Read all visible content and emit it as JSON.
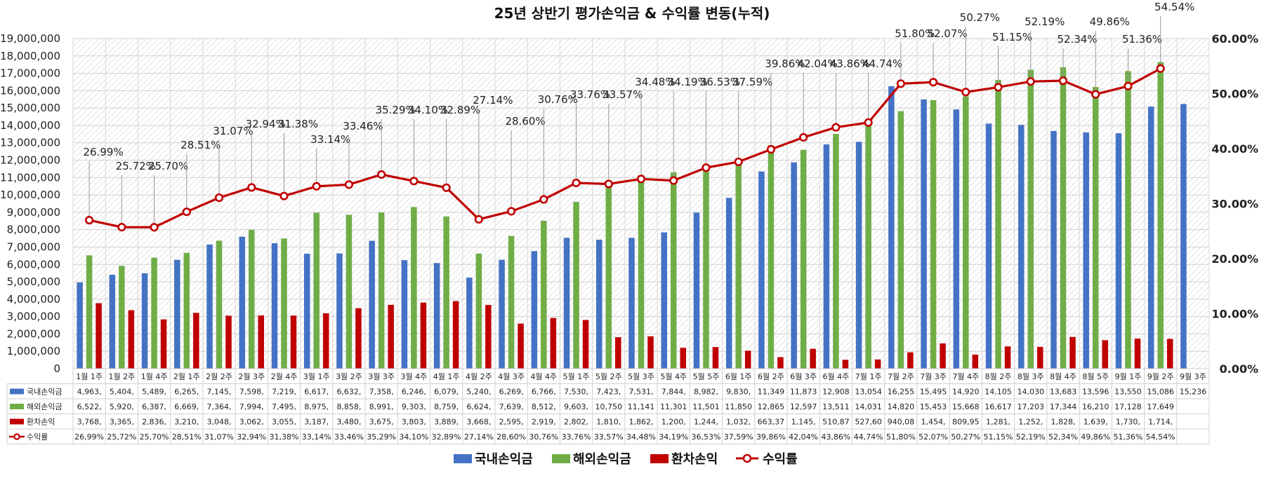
{
  "chart_data": {
    "type": "bar",
    "title": "25년 상반기 평가손익금 & 수익률 변동(누적)",
    "categories": [
      "1월 1주",
      "1월 2주",
      "1월 4주",
      "2월 1주",
      "2월 2주",
      "2월 3주",
      "2월 4주",
      "3월 1주",
      "3월 2주",
      "3월 3주",
      "3월 4주",
      "4월 1주",
      "4월 2주",
      "4월 3주",
      "4월 4주",
      "5월 1주",
      "5월 2주",
      "5월 3주",
      "5월 4주",
      "5월 5주",
      "6월 1주",
      "6월 2주",
      "6월 3주",
      "6월 4주",
      "7월 1주",
      "7월 2주",
      "7월 3주",
      "7월 4주",
      "8월 2주",
      "8월 3주",
      "8월 4주",
      "8월 5주",
      "9월 1주",
      "9월 2주",
      "9월 3주"
    ],
    "y_left_ticks": [
      "0",
      "1,000,000",
      "2,000,000",
      "3,000,000",
      "4,000,000",
      "5,000,000",
      "6,000,000",
      "7,000,000",
      "8,000,000",
      "9,000,000",
      "10,000,000",
      "11,000,000",
      "12,000,000",
      "13,000,000",
      "14,000,000",
      "15,000,000",
      "16,000,000",
      "17,000,000",
      "18,000,000",
      "19,000,000"
    ],
    "y_right_ticks": [
      "0.00%",
      "10.00%",
      "20.00%",
      "30.00%",
      "40.00%",
      "50.00%",
      "60.00%"
    ],
    "ylim_left": [
      0,
      19000000
    ],
    "ylim_right": [
      0,
      60
    ],
    "grid": true,
    "legend_position": "bottom",
    "series": [
      {
        "name": "국내손익금",
        "type": "bar",
        "axis": "left",
        "color": "#4472C4",
        "values": [
          4963000,
          5404000,
          5489000,
          6265000,
          7145000,
          7598000,
          7219000,
          6617000,
          6632000,
          7358000,
          6246000,
          6079000,
          5240000,
          6269000,
          6766000,
          7530000,
          7423000,
          7531000,
          7844000,
          8982000,
          9830000,
          11349000,
          11873000,
          12908000,
          13054000,
          16255000,
          15495000,
          14920000,
          14105000,
          14030000,
          13683000,
          13596000,
          13550000,
          15086000,
          15236000
        ],
        "table_cells": [
          "4,963,",
          "5,404,",
          "5,489,",
          "6,265,",
          "7,145,",
          "7,598,",
          "7,219,",
          "6,617,",
          "6,632,",
          "7,358,",
          "6,246,",
          "6,079,",
          "5,240,",
          "6,269,",
          "6,766,",
          "7,530,",
          "7,423,",
          "7,531,",
          "7,844,",
          "8,982,",
          "9,830,",
          "11,349",
          "11,873",
          "12,908",
          "13,054",
          "16,255",
          "15,495",
          "14,920",
          "14,105",
          "14,030",
          "13,683",
          "13,596",
          "13,550",
          "15,086",
          "15,236"
        ]
      },
      {
        "name": "해외손익금",
        "type": "bar",
        "axis": "left",
        "color": "#70AD47",
        "values": [
          6522000,
          5920000,
          6387000,
          6669000,
          7364000,
          7994000,
          7495000,
          8975000,
          8858000,
          8991000,
          9303000,
          8759000,
          6624000,
          7639000,
          8512000,
          9603000,
          10750000,
          11141000,
          11301000,
          11501000,
          11850000,
          12865000,
          12597000,
          13511000,
          14031000,
          14820000,
          15453000,
          15668000,
          16617000,
          17203000,
          17344000,
          16210000,
          17128000,
          17649000,
          null
        ],
        "table_cells": [
          "6,522,",
          "5,920,",
          "6,387,",
          "6,669,",
          "7,364,",
          "7,994,",
          "7,495,",
          "8,975,",
          "8,858,",
          "8,991,",
          "9,303,",
          "8,759,",
          "6,624,",
          "7,639,",
          "8,512,",
          "9,603,",
          "10,750",
          "11,141",
          "11,301",
          "11,501",
          "11,850",
          "12,865",
          "12,597",
          "13,511",
          "14,031",
          "14,820",
          "15,453",
          "15,668",
          "16,617",
          "17,203",
          "17,344",
          "16,210",
          "17,128",
          "17,649",
          ""
        ]
      },
      {
        "name": "환차손익",
        "type": "bar",
        "axis": "left",
        "color": "#C00000",
        "values": [
          3768000,
          3365000,
          2836000,
          3210000,
          3048000,
          3062000,
          3055000,
          3187000,
          3480000,
          3675000,
          3803000,
          3889000,
          3668000,
          2595000,
          2919000,
          2802000,
          1810000,
          1862000,
          1200000,
          1244000,
          1032000,
          663370,
          1145000,
          510870,
          527600,
          940080,
          1454000,
          809950,
          1281000,
          1252000,
          1828000,
          1639000,
          1730000,
          1714000,
          null
        ],
        "table_cells": [
          "3,768,",
          "3,365,",
          "2,836,",
          "3,210,",
          "3,048,",
          "3,062,",
          "3,055,",
          "3,187,",
          "3,480,",
          "3,675,",
          "3,803,",
          "3,889,",
          "3,668,",
          "2,595,",
          "2,919,",
          "2,802,",
          "1,810,",
          "1,862,",
          "1,200,",
          "1,244,",
          "1,032,",
          "663,37",
          "1,145,",
          "510,87",
          "527,60",
          "940,08",
          "1,454,",
          "809,95",
          "1,281,",
          "1,252,",
          "1,828,",
          "1,639,",
          "1,730,",
          "1,714,",
          ""
        ]
      },
      {
        "name": "수익률",
        "type": "line",
        "axis": "right",
        "color": "#C00000",
        "values": [
          26.99,
          25.72,
          25.7,
          28.51,
          31.07,
          32.94,
          31.38,
          33.14,
          33.46,
          35.29,
          34.1,
          32.89,
          27.14,
          28.6,
          30.76,
          33.76,
          33.57,
          34.48,
          34.19,
          36.53,
          37.59,
          39.86,
          42.04,
          43.86,
          44.74,
          51.8,
          52.07,
          50.27,
          51.15,
          52.19,
          52.34,
          49.86,
          51.36,
          54.54,
          null
        ],
        "data_labels": [
          "26.99%",
          "25.72%",
          "25.70%",
          "28.51%",
          "31.07%",
          "32.94%",
          "31.38%",
          "33.14%",
          "33.46%",
          "35.29%",
          "34.10%",
          "32.89%",
          "27.14%",
          "28.60%",
          "30.76%",
          "33.76%",
          "33.57%",
          "34.48%",
          "34.19%",
          "36.53%",
          "37.59%",
          "39.86%",
          "42.04%",
          "43.86%",
          "44.74%",
          "51.80%",
          "52.07%",
          "50.27%",
          "51.15%",
          "52.19%",
          "52.34%",
          "49.86%",
          "51.36%",
          "54.54%",
          ""
        ],
        "table_cells": [
          "26,99%",
          "25,72%",
          "25,70%",
          "28,51%",
          "31,07%",
          "32,94%",
          "31,38%",
          "33,14%",
          "33,46%",
          "35,29%",
          "34,10%",
          "32,89%",
          "27,14%",
          "28,60%",
          "30,76%",
          "33,76%",
          "33,57%",
          "34,48%",
          "34,19%",
          "36,53%",
          "37,59%",
          "39,86%",
          "42,04%",
          "43,86%",
          "44,74%",
          "51,80%",
          "52,07%",
          "50,27%",
          "51,15%",
          "52,19%",
          "52,34%",
          "49,86%",
          "51,36%",
          "54,54%",
          ""
        ]
      }
    ]
  }
}
